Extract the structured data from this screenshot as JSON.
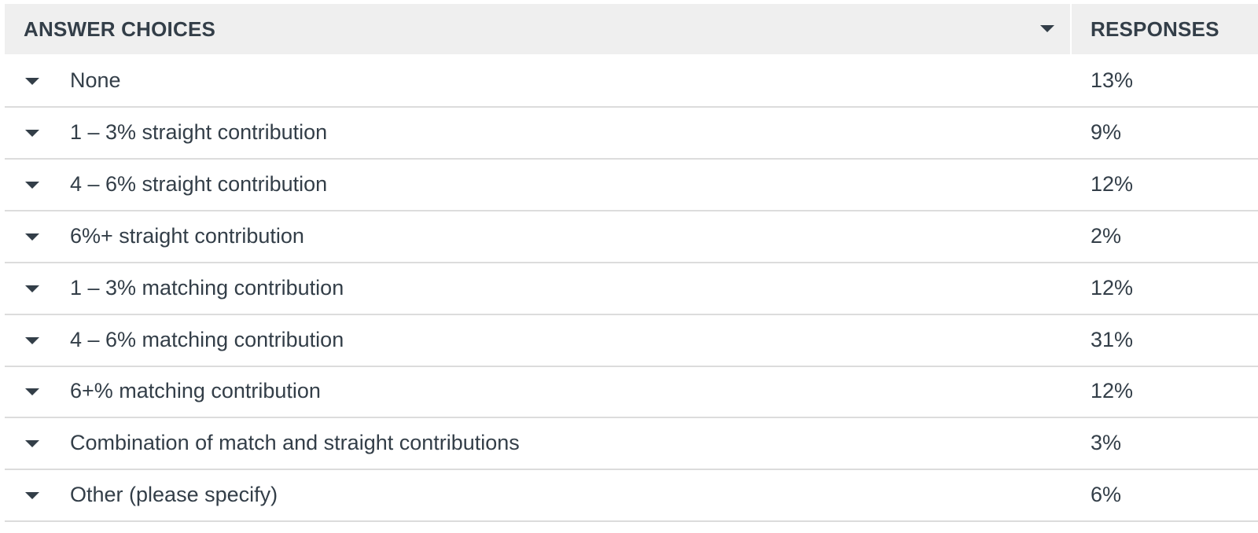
{
  "table": {
    "columns": [
      "ANSWER CHOICES",
      "RESPONSES"
    ],
    "rows": [
      [
        "None",
        "13%"
      ],
      [
        "1 – 3% straight contribution",
        "9%"
      ],
      [
        "4 – 6% straight contribution",
        "12%"
      ],
      [
        "6%+ straight contribution",
        "2%"
      ],
      [
        "1 – 3% matching contribution",
        "12%"
      ],
      [
        "4 – 6% matching contribution",
        "31%"
      ],
      [
        "6+% matching contribution",
        "12%"
      ],
      [
        "Combination of match and straight contributions",
        "3%"
      ],
      [
        "Other (please specify)",
        "6%"
      ]
    ]
  }
}
